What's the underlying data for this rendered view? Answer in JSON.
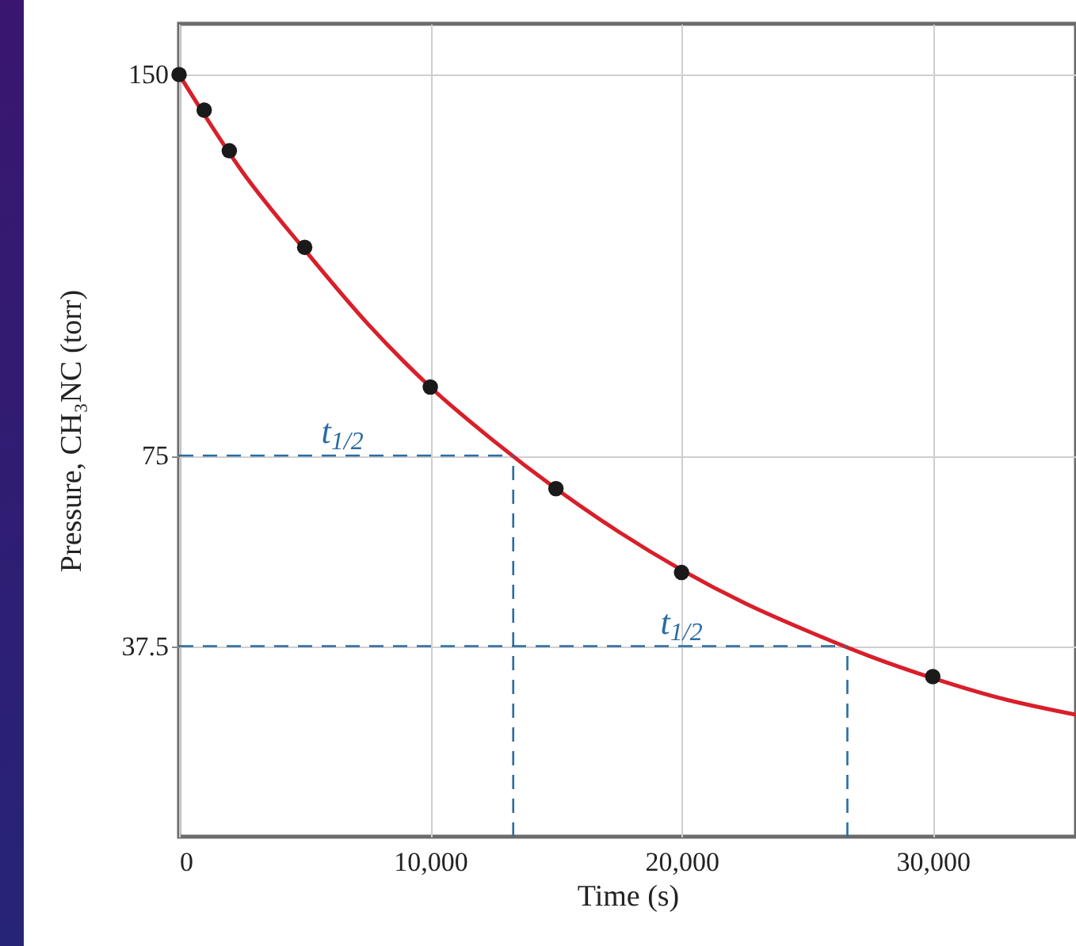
{
  "chart_data": {
    "type": "line",
    "xlabel": "Time (s)",
    "ylabel": "Pressure, CH₃NC (torr)",
    "xlim": [
      0,
      35700
    ],
    "ylim": [
      0,
      160
    ],
    "xticks": [
      0,
      {
        "value": 10000,
        "label": "10,000"
      },
      {
        "value": 20000,
        "label": "20,000"
      },
      {
        "value": 30000,
        "label": "30,000"
      }
    ],
    "yticks": [
      37.5,
      75,
      150
    ],
    "grid": true,
    "series": [
      {
        "type": "line",
        "color": "#d81f2a",
        "marker": "none",
        "x": [
          0,
          2500,
          5000,
          7500,
          10000,
          12500,
          15000,
          17500,
          20000,
          22500,
          25000,
          27500,
          30000,
          32500,
          35700
        ],
        "values": [
          150,
          131,
          115.5,
          101,
          88.5,
          78,
          68.5,
          60,
          52.5,
          46,
          40.5,
          35.5,
          31.2,
          27.5,
          24
        ]
      },
      {
        "type": "scatter",
        "color": "#1a1a1a",
        "marker": "circle",
        "x": [
          0,
          1000,
          2000,
          5000,
          10000,
          15000,
          20000,
          30000
        ],
        "values": [
          150,
          143,
          135,
          116,
          88.5,
          68.5,
          52,
          31.5
        ]
      }
    ],
    "ref_lines": [
      {
        "axis": "y",
        "value": 75,
        "color": "#2b6ca3",
        "line_style": "dashed"
      },
      {
        "axis": "y",
        "value": 37.5,
        "color": "#2b6ca3",
        "line_style": "dashed"
      },
      {
        "axis": "x",
        "value": 13300,
        "color": "#2b6ca3",
        "line_style": "dashed"
      },
      {
        "axis": "x",
        "value": 26600,
        "color": "#2b6ca3",
        "line_style": "dashed"
      }
    ],
    "annotations": [
      {
        "text": "t$_{1/2}$",
        "x": 6500,
        "y": 75
      },
      {
        "text": "t$_{1/2}$",
        "x": 20000,
        "y": 37.5
      }
    ]
  }
}
